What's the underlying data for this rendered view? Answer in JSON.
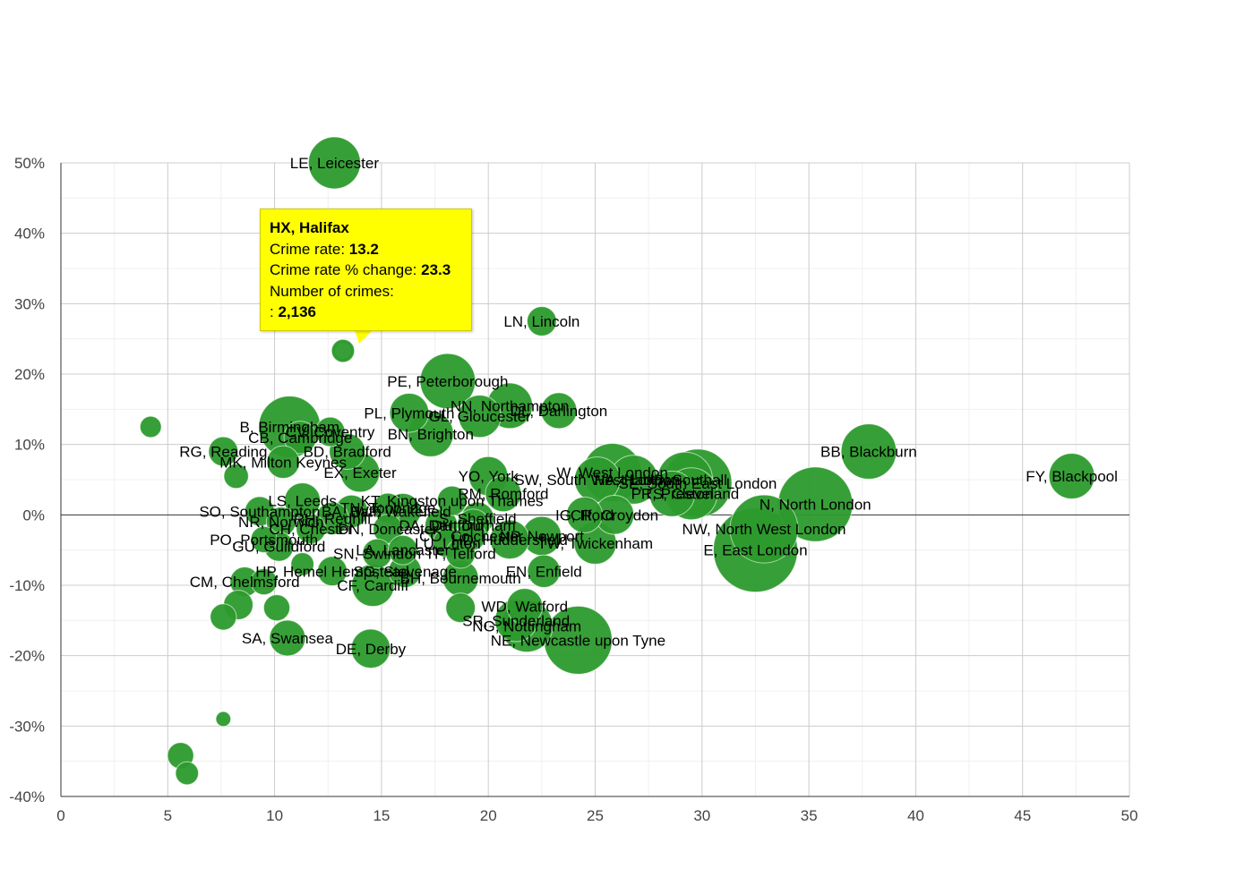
{
  "chart_data": {
    "type": "scatter",
    "title": "",
    "xlabel": "",
    "ylabel": "",
    "xlim": [
      0,
      50
    ],
    "ylim": [
      -40,
      50
    ],
    "x_ticks": [
      "0",
      "5",
      "10",
      "15",
      "20",
      "25",
      "30",
      "35",
      "40",
      "45",
      "50"
    ],
    "y_ticks": [
      "50%",
      "40%",
      "30%",
      "20%",
      "10%",
      "0%",
      "-10%",
      "-20%",
      "-30%",
      "-40%"
    ],
    "grid": true,
    "bubble_color": "#2c9a2c",
    "tooltip": {
      "title": "HX, Halifax",
      "rate_label": "Crime rate: ",
      "rate_value": "13.2",
      "change_label": "Crime rate % change: ",
      "change_value": "23.3",
      "crimes_label": "Number of crimes:",
      "crimes_prefix": ": ",
      "crimes_value": "2,136"
    },
    "points": [
      {
        "x": 12.8,
        "y": 50.0,
        "size": 3,
        "label": "LE, Leicester"
      },
      {
        "x": 13.2,
        "y": 23.3,
        "size": 1.2,
        "label": ""
      },
      {
        "x": 22.5,
        "y": 27.5,
        "size": 1.6,
        "label": "LN, Lincoln"
      },
      {
        "x": 18.1,
        "y": 19.0,
        "size": 3.2,
        "label": "PE, Peterborough"
      },
      {
        "x": 21.0,
        "y": 15.5,
        "size": 2.6,
        "label": "NN, Northampton"
      },
      {
        "x": 23.3,
        "y": 14.8,
        "size": 2.0,
        "label": "DL, Darlington"
      },
      {
        "x": 19.6,
        "y": 14.0,
        "size": 2.4,
        "label": "GL, Gloucester"
      },
      {
        "x": 16.3,
        "y": 14.5,
        "size": 2.2,
        "label": "PL, Plymouth"
      },
      {
        "x": 10.7,
        "y": 12.5,
        "size": 3.6,
        "label": "B, Birmingham"
      },
      {
        "x": 12.6,
        "y": 11.8,
        "size": 1.6,
        "label": "CV, Coventry"
      },
      {
        "x": 11.2,
        "y": 11.0,
        "size": 1.8,
        "label": "CB, Cambridge"
      },
      {
        "x": 17.3,
        "y": 11.5,
        "size": 2.6,
        "label": "BN, Brighton"
      },
      {
        "x": 7.6,
        "y": 9.0,
        "size": 1.6,
        "label": "RG, Reading"
      },
      {
        "x": 13.4,
        "y": 9.0,
        "size": 2.0,
        "label": "BD, Bradford"
      },
      {
        "x": 10.4,
        "y": 7.5,
        "size": 1.8,
        "label": "MK, Milton Keynes"
      },
      {
        "x": 14.0,
        "y": 6.0,
        "size": 2.2,
        "label": "EX, Exeter"
      },
      {
        "x": 4.2,
        "y": 12.5,
        "size": 1.1,
        "label": ""
      },
      {
        "x": 8.2,
        "y": 5.5,
        "size": 1.3,
        "label": ""
      },
      {
        "x": 20.0,
        "y": 5.5,
        "size": 2.2,
        "label": "YO, York"
      },
      {
        "x": 20.7,
        "y": 3.0,
        "size": 2.0,
        "label": "RM, Romford"
      },
      {
        "x": 25.8,
        "y": 6.0,
        "size": 3.4,
        "label": "W, West London"
      },
      {
        "x": 26.8,
        "y": 5.0,
        "size": 2.8,
        "label": "HA, Harrow"
      },
      {
        "x": 25.1,
        "y": 5.0,
        "size": 2.6,
        "label": "SW, South West London"
      },
      {
        "x": 29.2,
        "y": 5.0,
        "size": 3.2,
        "label": "UB, Southall"
      },
      {
        "x": 29.8,
        "y": 4.5,
        "size": 4.0,
        "label": "SE, South East London"
      },
      {
        "x": 29.5,
        "y": 3.0,
        "size": 3.0,
        "label": "TS, Cleveland"
      },
      {
        "x": 28.6,
        "y": 3.0,
        "size": 2.6,
        "label": "PR, Preston"
      },
      {
        "x": 37.8,
        "y": 9.0,
        "size": 3.2,
        "label": "BB, Blackburn"
      },
      {
        "x": 47.3,
        "y": 5.5,
        "size": 2.6,
        "label": "FY, Blackpool"
      },
      {
        "x": 35.3,
        "y": 1.5,
        "size": 4.4,
        "label": "N, North London"
      },
      {
        "x": 32.9,
        "y": -2.0,
        "size": 4.0,
        "label": "NW, North West London"
      },
      {
        "x": 32.5,
        "y": -5.0,
        "size": 5.0,
        "label": "E, East London"
      },
      {
        "x": 25.9,
        "y": 0.0,
        "size": 2.2,
        "label": "CR, Croydon"
      },
      {
        "x": 24.5,
        "y": 0.0,
        "size": 2.0,
        "label": "IG, Ilford"
      },
      {
        "x": 25.0,
        "y": -4.0,
        "size": 2.4,
        "label": "TW, Twickenham"
      },
      {
        "x": 22.5,
        "y": -3.0,
        "size": 2.2,
        "label": "NP, Newport"
      },
      {
        "x": 21.0,
        "y": -3.5,
        "size": 2.2,
        "label": "HD, Huddersfield"
      },
      {
        "x": 18.3,
        "y": 2.0,
        "size": 1.6,
        "label": "KT, Kingston upon Thames"
      },
      {
        "x": 15.3,
        "y": 1.0,
        "size": 1.6,
        "label": "TN, Tonbridge"
      },
      {
        "x": 11.3,
        "y": 2.0,
        "size": 2.0,
        "label": "LS, Leeds"
      },
      {
        "x": 9.3,
        "y": 0.5,
        "size": 1.6,
        "label": "SO, Southampton"
      },
      {
        "x": 13.6,
        "y": 0.5,
        "size": 1.8,
        "label": "BA, Bath"
      },
      {
        "x": 16.0,
        "y": 0.5,
        "size": 2.0,
        "label": "WF, Wakefield"
      },
      {
        "x": 19.5,
        "y": -0.5,
        "size": 1.8,
        "label": "S, Sheffield"
      },
      {
        "x": 12.7,
        "y": -0.5,
        "size": 1.8,
        "label": "RH, Redhill"
      },
      {
        "x": 10.3,
        "y": -1.0,
        "size": 1.6,
        "label": "NR, Norwich"
      },
      {
        "x": 19.3,
        "y": -1.5,
        "size": 1.8,
        "label": "DH, Durham"
      },
      {
        "x": 17.8,
        "y": -1.5,
        "size": 1.8,
        "label": "DA, Dartford"
      },
      {
        "x": 15.3,
        "y": -2.0,
        "size": 1.6,
        "label": "DN, Doncaster"
      },
      {
        "x": 11.7,
        "y": -2.0,
        "size": 1.6,
        "label": "CH, Chester"
      },
      {
        "x": 19.2,
        "y": -3.0,
        "size": 1.6,
        "label": "CO, Colchester"
      },
      {
        "x": 9.5,
        "y": -3.5,
        "size": 1.4,
        "label": "PO, Portsmouth"
      },
      {
        "x": 18.1,
        "y": -4.0,
        "size": 1.6,
        "label": "LU, Luton"
      },
      {
        "x": 10.2,
        "y": -4.5,
        "size": 1.6,
        "label": "GU, Guildford"
      },
      {
        "x": 14.8,
        "y": -5.5,
        "size": 1.6,
        "label": "SN, Swindon"
      },
      {
        "x": 16.0,
        "y": -5.0,
        "size": 1.6,
        "label": "LA, Lancaster"
      },
      {
        "x": 18.7,
        "y": -5.5,
        "size": 1.6,
        "label": "TF, Telford"
      },
      {
        "x": 12.7,
        "y": -8.0,
        "size": 1.6,
        "label": "HP, Hemel Hempstead"
      },
      {
        "x": 11.3,
        "y": -7.0,
        "size": 1.2,
        "label": ""
      },
      {
        "x": 16.1,
        "y": -8.0,
        "size": 1.8,
        "label": "SG, Stevenage"
      },
      {
        "x": 18.7,
        "y": -9.0,
        "size": 2.0,
        "label": "BH, Bournemouth"
      },
      {
        "x": 22.6,
        "y": -8.0,
        "size": 1.8,
        "label": "EN, Enfield"
      },
      {
        "x": 14.6,
        "y": -10.0,
        "size": 2.4,
        "label": "CF, Cardiff"
      },
      {
        "x": 8.6,
        "y": -9.5,
        "size": 1.6,
        "label": "CM, Chelmsford"
      },
      {
        "x": 9.5,
        "y": -9.5,
        "size": 1.4,
        "label": ""
      },
      {
        "x": 8.3,
        "y": -12.8,
        "size": 1.6,
        "label": ""
      },
      {
        "x": 10.1,
        "y": -13.2,
        "size": 1.4,
        "label": ""
      },
      {
        "x": 7.6,
        "y": -14.5,
        "size": 1.4,
        "label": ""
      },
      {
        "x": 18.7,
        "y": -13.2,
        "size": 1.6,
        "label": ""
      },
      {
        "x": 21.7,
        "y": -13.0,
        "size": 2.0,
        "label": "WD, Watford"
      },
      {
        "x": 21.3,
        "y": -15.0,
        "size": 2.4,
        "label": "SR, Sunderland"
      },
      {
        "x": 21.8,
        "y": -15.8,
        "size": 3.0,
        "label": "NG, Nottingham"
      },
      {
        "x": 24.2,
        "y": -17.8,
        "size": 4.0,
        "label": "NE, Newcastle upon Tyne"
      },
      {
        "x": 10.6,
        "y": -17.5,
        "size": 2.0,
        "label": "SA, Swansea"
      },
      {
        "x": 14.5,
        "y": -19.0,
        "size": 2.2,
        "label": "DE, Derby"
      },
      {
        "x": 7.6,
        "y": -29.0,
        "size": 0.7,
        "label": ""
      },
      {
        "x": 5.6,
        "y": -34.2,
        "size": 1.4,
        "label": ""
      },
      {
        "x": 5.9,
        "y": -36.7,
        "size": 1.2,
        "label": ""
      }
    ]
  }
}
